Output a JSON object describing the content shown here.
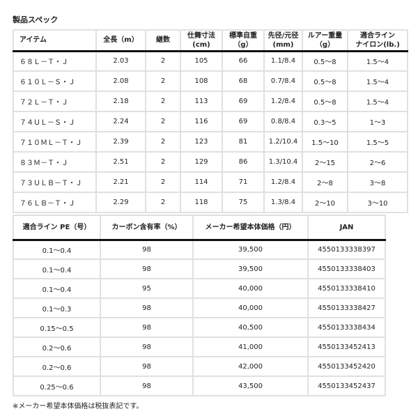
{
  "title": "製品スペック",
  "table1": {
    "headers": [
      "アイテム",
      "全長（m）",
      "継数",
      "仕舞寸法\n(cm)",
      "標準自重\n（g）",
      "先径/元径\n(mm)",
      "ルアー重量\n（g）",
      "適合ライン\nナイロン(lb.)"
    ],
    "rows": [
      [
        "６８Ｌ－Ｔ・Ｊ",
        "2.03",
        "2",
        "105",
        "66",
        "1.1/8.4",
        "0.5～8",
        "1.5～4"
      ],
      [
        "６１０Ｌ－Ｓ・Ｊ",
        "2.08",
        "2",
        "108",
        "68",
        "0.7/8.4",
        "0.5～8",
        "1.5～4"
      ],
      [
        "７２Ｌ－Ｔ・Ｊ",
        "2.18",
        "2",
        "113",
        "69",
        "1.2/8.4",
        "0.5～8",
        "1.5～4"
      ],
      [
        "７４ＵＬ－Ｓ・Ｊ",
        "2.24",
        "2",
        "116",
        "69",
        "0.8/8.4",
        "0.3～5",
        "1～3"
      ],
      [
        "７１０ＭＬ－Ｔ・Ｊ",
        "2.39",
        "2",
        "123",
        "81",
        "1.2/10.4",
        "1.5～10",
        "1.5～5"
      ],
      [
        "８３Ｍ－Ｔ・Ｊ",
        "2.51",
        "2",
        "129",
        "86",
        "1.3/10.4",
        "2～15",
        "2～6"
      ],
      [
        "７３ＵＬＢ－Ｔ・Ｊ",
        "2.21",
        "2",
        "114",
        "71",
        "1.2/8.4",
        "2～8",
        "3～8"
      ],
      [
        "７６ＬＢ－Ｔ・Ｊ",
        "2.29",
        "2",
        "118",
        "75",
        "1.3/8.4",
        "2～10",
        "3～10"
      ]
    ]
  },
  "table2": {
    "headers": [
      "適合ライン PE（号）",
      "カーボン含有率（%）",
      "メーカー希望本体価格（円）",
      "JAN"
    ],
    "rows": [
      [
        "0.1～0.4",
        "98",
        "39,500",
        "4550133338397"
      ],
      [
        "0.1～0.4",
        "98",
        "39,500",
        "4550133338403"
      ],
      [
        "0.1～0.4",
        "95",
        "40,000",
        "4550133338410"
      ],
      [
        "0.1～0.3",
        "98",
        "40,000",
        "4550133338427"
      ],
      [
        "0.15～0.5",
        "98",
        "40,500",
        "4550133338434"
      ],
      [
        "0.2～0.6",
        "98",
        "41,000",
        "4550133452413"
      ],
      [
        "0.2～0.6",
        "98",
        "42,000",
        "4550133452420"
      ],
      [
        "0.25～0.6",
        "98",
        "43,500",
        "4550133452437"
      ]
    ]
  },
  "footnote": "※メーカー希望本体価格は税抜表記です。"
}
